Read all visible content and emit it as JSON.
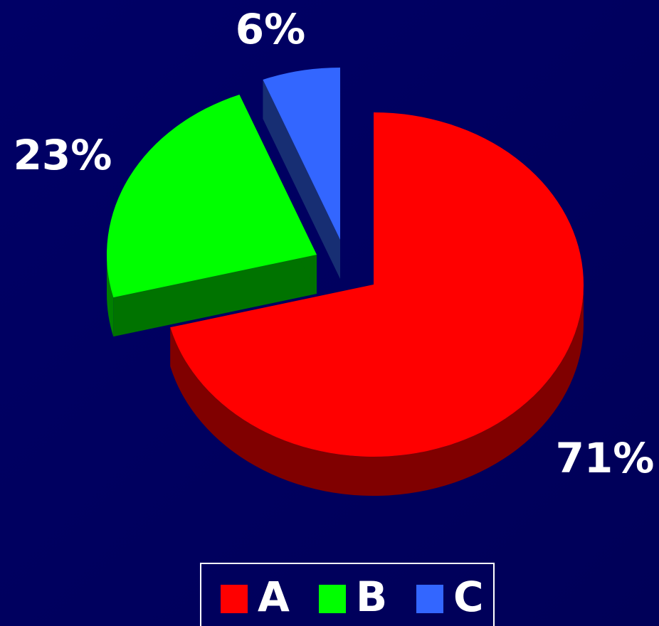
{
  "chart_data": {
    "type": "pie",
    "categories": [
      "A",
      "B",
      "C"
    ],
    "values": [
      71,
      23,
      6
    ],
    "value_labels": [
      "71%",
      "23%",
      "6%"
    ],
    "colors": [
      "#ff0000",
      "#00ff00",
      "#3366ff"
    ],
    "legend": "bottom"
  }
}
